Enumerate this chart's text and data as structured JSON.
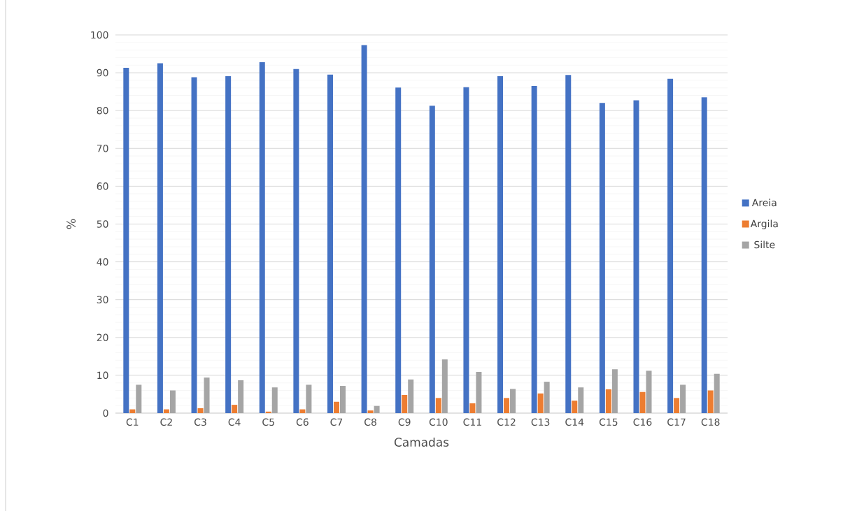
{
  "chart_data": {
    "type": "bar",
    "xlabel": "Camadas",
    "ylabel": "%",
    "categories": [
      "C1",
      "C2",
      "C3",
      "C4",
      "C5",
      "C6",
      "C7",
      "C8",
      "C9",
      "C10",
      "C11",
      "C12",
      "C13",
      "C14",
      "C15",
      "C16",
      "C17",
      "C18"
    ],
    "series": [
      {
        "name": "Areia",
        "color": "#4472c4",
        "values": [
          91.3,
          92.5,
          88.8,
          89.1,
          92.8,
          91.0,
          89.5,
          97.3,
          86.1,
          81.3,
          86.2,
          89.1,
          86.5,
          89.4,
          82.0,
          82.7,
          88.4,
          83.5
        ]
      },
      {
        "name": "Argila",
        "color": "#ed7d31",
        "values": [
          1.0,
          1.0,
          1.3,
          2.2,
          0.4,
          1.0,
          3.0,
          0.7,
          4.8,
          4.0,
          2.6,
          4.0,
          5.2,
          3.3,
          6.3,
          5.6,
          4.0,
          6.0
        ]
      },
      {
        "name": "Silte",
        "color": "#a5a5a5",
        "values": [
          7.5,
          6.0,
          9.4,
          8.7,
          6.8,
          7.5,
          7.2,
          1.9,
          8.9,
          14.2,
          10.9,
          6.4,
          8.3,
          6.8,
          11.6,
          11.2,
          7.5,
          10.4
        ]
      }
    ],
    "ylim": [
      0,
      100
    ],
    "yticks": [
      0,
      10,
      20,
      30,
      40,
      50,
      60,
      70,
      80,
      90,
      100
    ],
    "grid": "y",
    "legend": "right"
  }
}
